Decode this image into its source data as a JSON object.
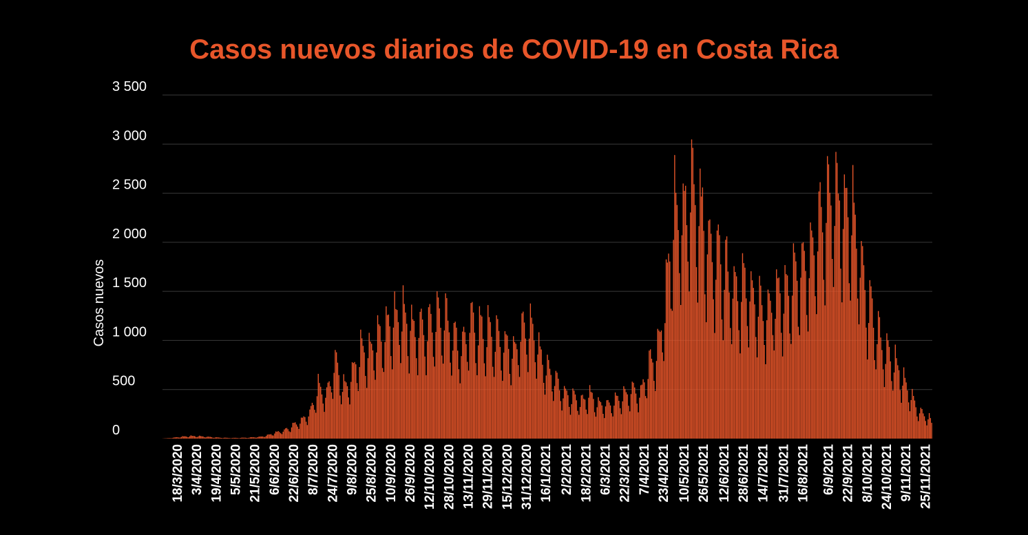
{
  "colors": {
    "background": "#000000",
    "bars": "#e8562a",
    "title": "#e8562a",
    "grid": "#3a3a3a",
    "text": "#ffffff"
  },
  "chart_data": {
    "type": "bar",
    "title": "Casos nuevos diarios de COVID-19 en Costa Rica",
    "xlabel": "",
    "ylabel": "Casos nuevos",
    "ylim": [
      0,
      3500
    ],
    "yticks": [
      0,
      500,
      1000,
      1500,
      2000,
      2500,
      3000,
      3500
    ],
    "ytick_labels": [
      "0",
      "500",
      "1 000",
      "1 500",
      "2 000",
      "2 500",
      "3 000",
      "3 500"
    ],
    "grid": true,
    "date_start": "2020-03-06",
    "date_end": "2021-11-30",
    "xtick_labels": [
      "18/3/2020",
      "3/4/2020",
      "19/4/2020",
      "5/5/2020",
      "21/5/2020",
      "6/6/2020",
      "22/6/2020",
      "8/7/2020",
      "24/7/2020",
      "9/8/2020",
      "25/8/2020",
      "10/9/2020",
      "26/9/2020",
      "12/10/2020",
      "28/10/2020",
      "13/11/2020",
      "29/11/2020",
      "15/12/2020",
      "31/12/2020",
      "16/1/2021",
      "2/2/2021",
      "18/2/2021",
      "6/3/2021",
      "22/3/2021",
      "7/4/2021",
      "23/4/2021",
      "10/5/2021",
      "26/5/2021",
      "12/6/2021",
      "28/6/2021",
      "14/7/2021",
      "31/7/2021",
      "16/8/2021",
      "6/9/2021",
      "22/9/2021",
      "8/10/2021",
      "24/10/2021",
      "9/11/2021",
      "25/11/2021"
    ],
    "weekly_peaks": [
      {
        "date": "2020-03-08",
        "value": 3
      },
      {
        "date": "2020-03-15",
        "value": 12
      },
      {
        "date": "2020-03-22",
        "value": 25
      },
      {
        "date": "2020-03-29",
        "value": 32
      },
      {
        "date": "2020-04-05",
        "value": 30
      },
      {
        "date": "2020-04-12",
        "value": 22
      },
      {
        "date": "2020-04-19",
        "value": 14
      },
      {
        "date": "2020-04-26",
        "value": 10
      },
      {
        "date": "2020-05-03",
        "value": 8
      },
      {
        "date": "2020-05-10",
        "value": 10
      },
      {
        "date": "2020-05-17",
        "value": 14
      },
      {
        "date": "2020-05-24",
        "value": 20
      },
      {
        "date": "2020-05-31",
        "value": 40
      },
      {
        "date": "2020-06-07",
        "value": 75
      },
      {
        "date": "2020-06-14",
        "value": 100
      },
      {
        "date": "2020-06-21",
        "value": 160
      },
      {
        "date": "2020-06-28",
        "value": 230
      },
      {
        "date": "2020-07-05",
        "value": 320
      },
      {
        "date": "2020-07-12",
        "value": 650
      },
      {
        "date": "2020-07-19",
        "value": 560
      },
      {
        "date": "2020-07-26",
        "value": 940
      },
      {
        "date": "2020-08-02",
        "value": 640
      },
      {
        "date": "2020-08-09",
        "value": 800
      },
      {
        "date": "2020-08-16",
        "value": 1080
      },
      {
        "date": "2020-08-23",
        "value": 1050
      },
      {
        "date": "2020-08-30",
        "value": 1210
      },
      {
        "date": "2020-09-06",
        "value": 1350
      },
      {
        "date": "2020-09-13",
        "value": 1490
      },
      {
        "date": "2020-09-20",
        "value": 1560
      },
      {
        "date": "2020-09-27",
        "value": 1390
      },
      {
        "date": "2020-10-04",
        "value": 1350
      },
      {
        "date": "2020-10-11",
        "value": 1380
      },
      {
        "date": "2020-10-18",
        "value": 1550
      },
      {
        "date": "2020-10-25",
        "value": 1500
      },
      {
        "date": "2020-11-01",
        "value": 1260
      },
      {
        "date": "2020-11-08",
        "value": 1150
      },
      {
        "date": "2020-11-15",
        "value": 1430
      },
      {
        "date": "2020-11-22",
        "value": 1340
      },
      {
        "date": "2020-11-29",
        "value": 1320
      },
      {
        "date": "2020-12-06",
        "value": 1250
      },
      {
        "date": "2020-12-13",
        "value": 1170
      },
      {
        "date": "2020-12-20",
        "value": 1080
      },
      {
        "date": "2020-12-27",
        "value": 1310
      },
      {
        "date": "2021-01-03",
        "value": 1450
      },
      {
        "date": "2021-01-10",
        "value": 1100
      },
      {
        "date": "2021-01-17",
        "value": 870
      },
      {
        "date": "2021-01-24",
        "value": 750
      },
      {
        "date": "2021-01-31",
        "value": 560
      },
      {
        "date": "2021-02-07",
        "value": 500
      },
      {
        "date": "2021-02-14",
        "value": 460
      },
      {
        "date": "2021-02-21",
        "value": 550
      },
      {
        "date": "2021-02-28",
        "value": 440
      },
      {
        "date": "2021-03-07",
        "value": 420
      },
      {
        "date": "2021-03-14",
        "value": 490
      },
      {
        "date": "2021-03-21",
        "value": 520
      },
      {
        "date": "2021-03-28",
        "value": 610
      },
      {
        "date": "2021-04-04",
        "value": 560
      },
      {
        "date": "2021-04-11",
        "value": 920
      },
      {
        "date": "2021-04-18",
        "value": 1110
      },
      {
        "date": "2021-04-25",
        "value": 1800
      },
      {
        "date": "2021-05-02",
        "value": 2800
      },
      {
        "date": "2021-05-09",
        "value": 2680
      },
      {
        "date": "2021-05-16",
        "value": 3170
      },
      {
        "date": "2021-05-23",
        "value": 2900
      },
      {
        "date": "2021-05-30",
        "value": 2340
      },
      {
        "date": "2021-06-06",
        "value": 2300
      },
      {
        "date": "2021-06-13",
        "value": 2120
      },
      {
        "date": "2021-06-20",
        "value": 1880
      },
      {
        "date": "2021-06-27",
        "value": 1880
      },
      {
        "date": "2021-07-04",
        "value": 1850
      },
      {
        "date": "2021-07-11",
        "value": 1600
      },
      {
        "date": "2021-07-18",
        "value": 1580
      },
      {
        "date": "2021-07-25",
        "value": 1800
      },
      {
        "date": "2021-08-01",
        "value": 1760
      },
      {
        "date": "2021-08-08",
        "value": 1950
      },
      {
        "date": "2021-08-15",
        "value": 2130
      },
      {
        "date": "2021-08-22",
        "value": 2320
      },
      {
        "date": "2021-08-29",
        "value": 2700
      },
      {
        "date": "2021-09-05",
        "value": 3000
      },
      {
        "date": "2021-09-12",
        "value": 2980
      },
      {
        "date": "2021-09-19",
        "value": 2900
      },
      {
        "date": "2021-09-26",
        "value": 2720
      },
      {
        "date": "2021-10-03",
        "value": 2080
      },
      {
        "date": "2021-10-10",
        "value": 1620
      },
      {
        "date": "2021-10-17",
        "value": 1300
      },
      {
        "date": "2021-10-24",
        "value": 1050
      },
      {
        "date": "2021-10-31",
        "value": 950
      },
      {
        "date": "2021-11-07",
        "value": 730
      },
      {
        "date": "2021-11-14",
        "value": 500
      },
      {
        "date": "2021-11-21",
        "value": 330
      },
      {
        "date": "2021-11-28",
        "value": 260
      },
      {
        "date": "2021-11-30",
        "value": 170
      }
    ]
  }
}
